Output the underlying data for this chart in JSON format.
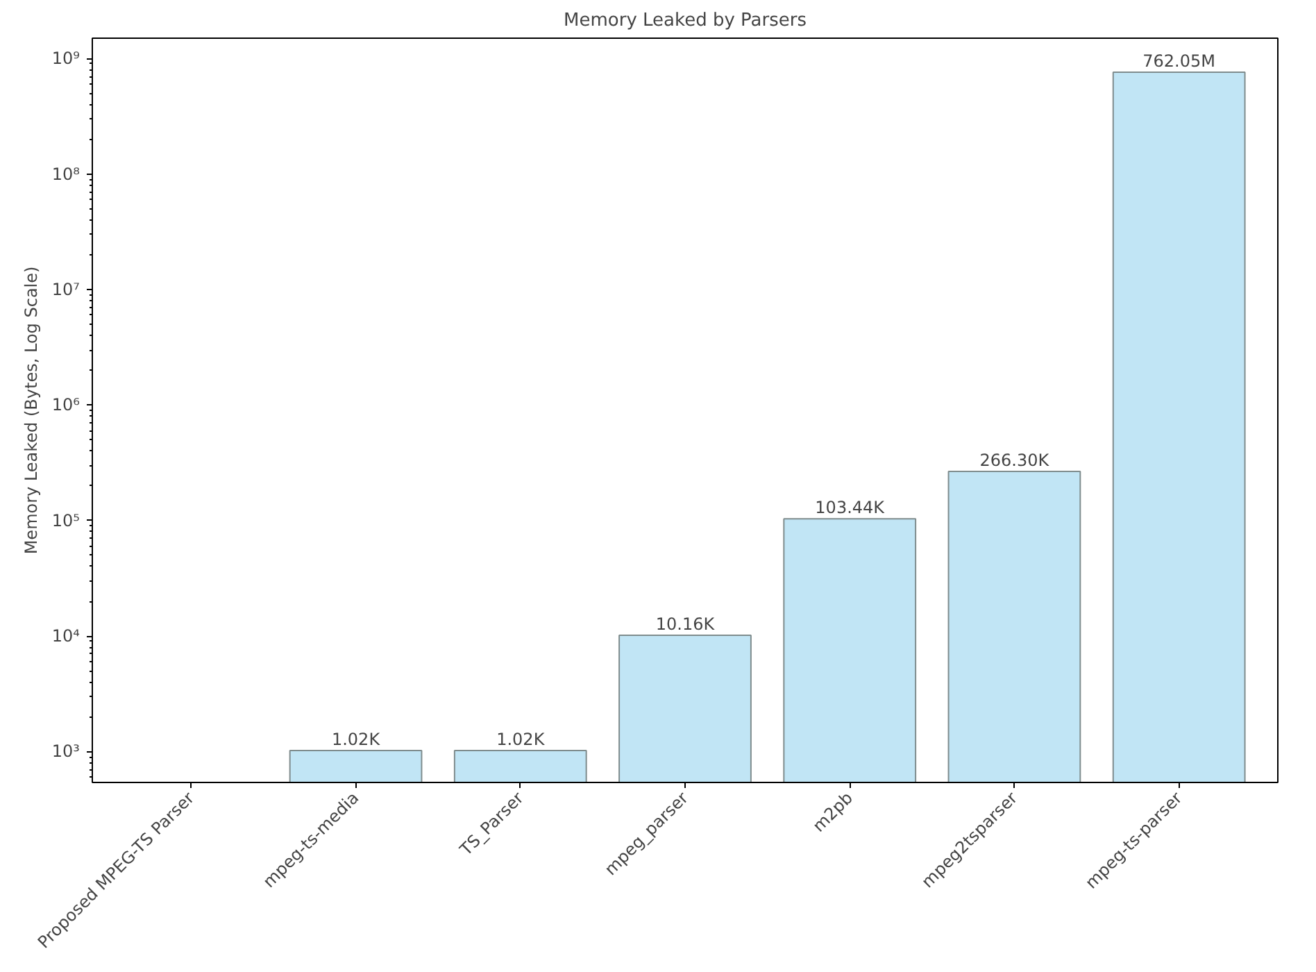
{
  "chart_data": {
    "type": "bar",
    "title": "Memory Leaked by Parsers",
    "ylabel": "Memory Leaked (Bytes, Log Scale)",
    "categories": [
      "Proposed MPEG-TS Parser",
      "mpeg-ts-media",
      "TS_Parser",
      "mpeg_parser",
      "m2pb",
      "mpeg2tsparser",
      "mpeg-ts-parser"
    ],
    "values": [
      null,
      1020,
      1020,
      10160,
      103440,
      266300,
      762050000
    ],
    "value_labels": [
      null,
      "1.02K",
      "1.02K",
      "10.16K",
      "103.44K",
      "266.30K",
      "762.05M"
    ],
    "color": "#c1e5f5",
    "log": true,
    "grid": false,
    "ylim": [
      540,
      1500000000
    ],
    "yticks": [
      {
        "value": 1000,
        "label": "10³"
      },
      {
        "value": 10000,
        "label": "10⁴"
      },
      {
        "value": 100000,
        "label": "10⁵"
      },
      {
        "value": 1000000,
        "label": "10⁶"
      },
      {
        "value": 10000000,
        "label": "10⁷"
      },
      {
        "value": 100000000,
        "label": "10⁸"
      },
      {
        "value": 1000000000,
        "label": "10⁹"
      }
    ]
  }
}
